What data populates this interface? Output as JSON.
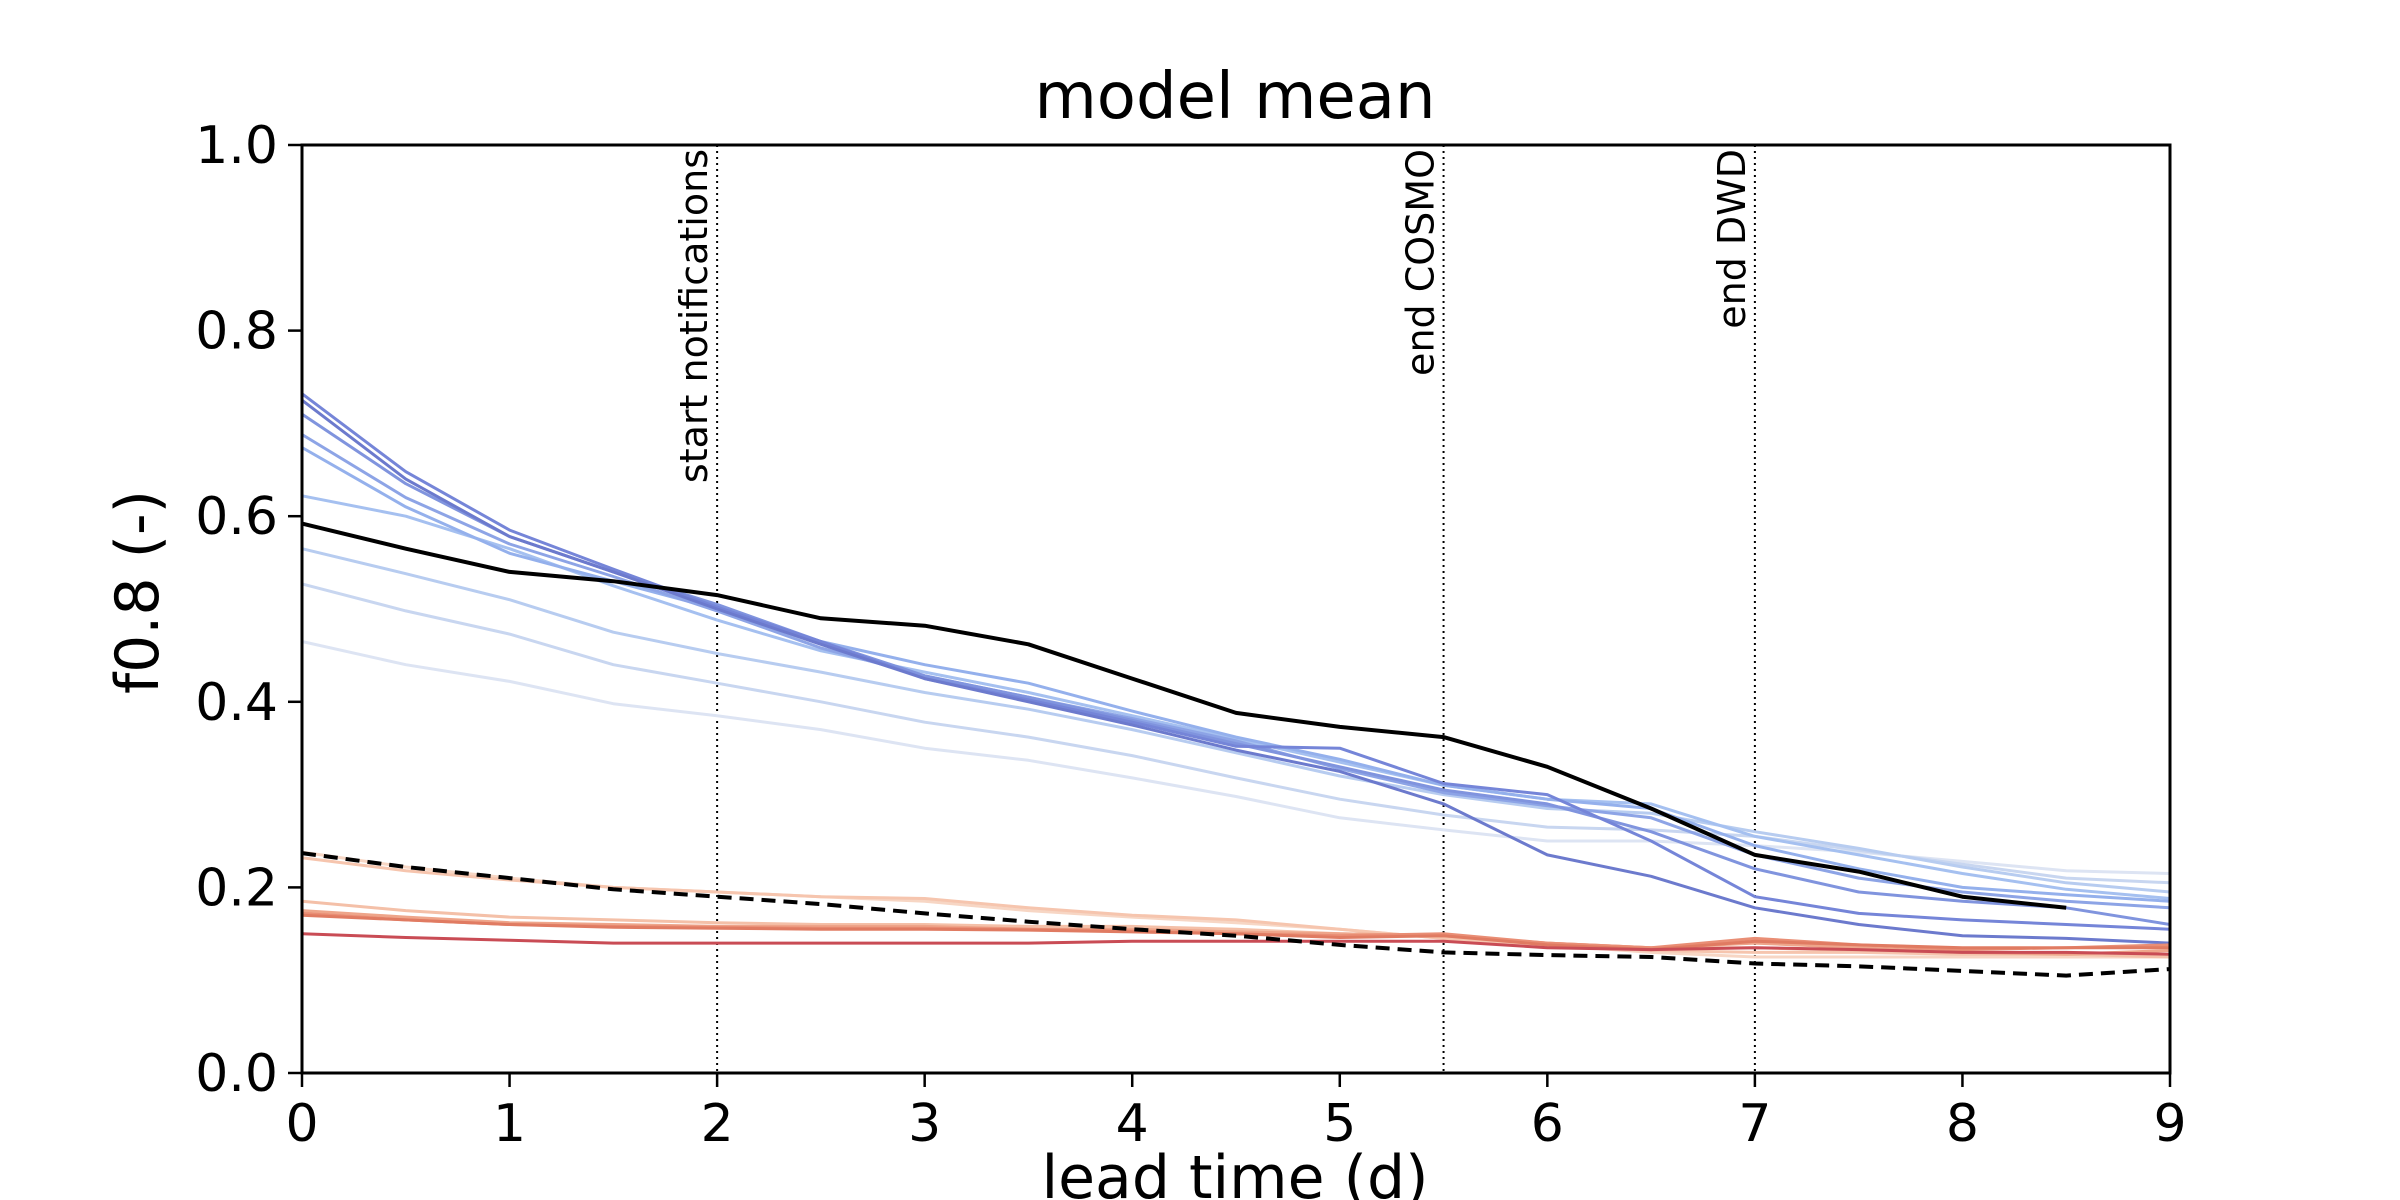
{
  "chart_data": {
    "type": "line",
    "title": "model mean",
    "xlabel": "lead time (d)",
    "ylabel": "f0.8 (-)",
    "xlim": [
      0,
      9
    ],
    "ylim": [
      0,
      1
    ],
    "xticks": [
      "0",
      "1",
      "2",
      "3",
      "4",
      "5",
      "6",
      "7",
      "8",
      "9"
    ],
    "yticks": [
      "0.0",
      "0.2",
      "0.4",
      "0.6",
      "0.8",
      "1.0"
    ],
    "grid": false,
    "x": [
      0,
      0.5,
      1,
      1.5,
      2,
      2.5,
      3,
      3.5,
      4,
      4.5,
      5,
      5.5,
      6,
      6.5,
      7,
      7.5,
      8,
      8.5,
      9
    ],
    "vlines": [
      {
        "x": 2,
        "label": "start notifications"
      },
      {
        "x": 5.5,
        "label": "end COSMO"
      },
      {
        "x": 7,
        "label": "end DWD"
      }
    ],
    "series": [
      {
        "color": "#dde4f3",
        "values": [
          0.465,
          0.44,
          0.422,
          0.398,
          0.385,
          0.37,
          0.35,
          0.337,
          0.318,
          0.298,
          0.275,
          0.262,
          0.25,
          0.25,
          0.245,
          0.238,
          0.228,
          0.218,
          0.215
        ]
      },
      {
        "color": "#c8d6f0",
        "values": [
          0.527,
          0.498,
          0.473,
          0.44,
          0.42,
          0.4,
          0.378,
          0.362,
          0.342,
          0.318,
          0.295,
          0.278,
          0.265,
          0.262,
          0.255,
          0.24,
          0.225,
          0.21,
          0.205
        ]
      },
      {
        "color": "#b7ccf0",
        "values": [
          0.565,
          0.538,
          0.51,
          0.475,
          0.452,
          0.432,
          0.41,
          0.392,
          0.37,
          0.345,
          0.32,
          0.3,
          0.285,
          0.28,
          0.26,
          0.242,
          0.222,
          0.205,
          0.195
        ]
      },
      {
        "color": "#a5c0f0",
        "values": [
          0.622,
          0.6,
          0.565,
          0.525,
          0.488,
          0.455,
          0.432,
          0.41,
          0.385,
          0.36,
          0.335,
          0.31,
          0.295,
          0.29,
          0.255,
          0.235,
          0.215,
          0.198,
          0.188
        ]
      },
      {
        "color": "#94b0ec",
        "values": [
          0.674,
          0.61,
          0.56,
          0.53,
          0.5,
          0.465,
          0.44,
          0.42,
          0.39,
          0.362,
          0.338,
          0.31,
          0.295,
          0.285,
          0.245,
          0.22,
          0.2,
          0.192,
          0.185
        ]
      },
      {
        "color": "#8da4e6",
        "values": [
          0.688,
          0.62,
          0.57,
          0.535,
          0.498,
          0.458,
          0.428,
          0.405,
          0.382,
          0.358,
          0.328,
          0.302,
          0.288,
          0.275,
          0.235,
          0.21,
          0.195,
          0.185,
          0.178
        ]
      },
      {
        "color": "#8094de",
        "values": [
          0.71,
          0.635,
          0.578,
          0.54,
          0.505,
          0.465,
          0.428,
          0.405,
          0.38,
          0.355,
          0.33,
          0.305,
          0.29,
          0.26,
          0.22,
          0.195,
          0.185,
          0.178,
          0.16
        ]
      },
      {
        "color": "#7585d8",
        "values": [
          0.732,
          0.648,
          0.585,
          0.543,
          0.502,
          0.465,
          0.425,
          0.402,
          0.378,
          0.352,
          0.35,
          0.312,
          0.3,
          0.25,
          0.19,
          0.172,
          0.165,
          0.16,
          0.155
        ]
      },
      {
        "color": "#6c7acd",
        "values": [
          0.725,
          0.64,
          0.578,
          0.54,
          0.5,
          0.462,
          0.425,
          0.4,
          0.375,
          0.348,
          0.325,
          0.29,
          0.235,
          0.212,
          0.178,
          0.16,
          0.148,
          0.145,
          0.14
        ]
      },
      {
        "color": "#f7d6c4",
        "values": [
          0.238,
          0.222,
          0.21,
          0.2,
          0.195,
          0.19,
          0.185,
          0.175,
          0.168,
          0.162,
          0.155,
          0.145,
          0.138,
          0.13,
          0.125,
          0.125,
          0.125,
          0.125,
          0.125
        ]
      },
      {
        "color": "#f6c5ae",
        "values": [
          0.232,
          0.218,
          0.208,
          0.2,
          0.195,
          0.19,
          0.188,
          0.178,
          0.17,
          0.165,
          0.155,
          0.145,
          0.138,
          0.132,
          0.13,
          0.13,
          0.128,
          0.128,
          0.128
        ]
      },
      {
        "color": "#f4c0a8",
        "values": [
          0.185,
          0.175,
          0.168,
          0.165,
          0.162,
          0.16,
          0.16,
          0.158,
          0.158,
          0.155,
          0.15,
          0.148,
          0.14,
          0.135,
          0.135,
          0.132,
          0.13,
          0.128,
          0.125
        ]
      },
      {
        "color": "#eea58a",
        "values": [
          0.175,
          0.168,
          0.162,
          0.16,
          0.158,
          0.158,
          0.158,
          0.155,
          0.155,
          0.152,
          0.15,
          0.148,
          0.14,
          0.135,
          0.14,
          0.135,
          0.13,
          0.128,
          0.132
        ]
      },
      {
        "color": "#e98e75",
        "values": [
          0.172,
          0.165,
          0.16,
          0.158,
          0.157,
          0.156,
          0.156,
          0.155,
          0.153,
          0.15,
          0.148,
          0.15,
          0.14,
          0.135,
          0.145,
          0.138,
          0.133,
          0.135,
          0.138
        ]
      },
      {
        "color": "#e07b62",
        "values": [
          0.17,
          0.165,
          0.16,
          0.157,
          0.156,
          0.155,
          0.155,
          0.154,
          0.152,
          0.15,
          0.146,
          0.148,
          0.138,
          0.133,
          0.142,
          0.138,
          0.135,
          0.135,
          0.135
        ]
      },
      {
        "color": "#c94c55",
        "values": [
          0.15,
          0.146,
          0.143,
          0.14,
          0.14,
          0.14,
          0.14,
          0.14,
          0.142,
          0.142,
          0.142,
          0.142,
          0.135,
          0.133,
          0.135,
          0.133,
          0.13,
          0.13,
          0.128
        ]
      },
      {
        "color": "#000000",
        "width": 4,
        "dash": false,
        "values": [
          0.592,
          0.565,
          0.54,
          0.53,
          0.515,
          0.49,
          0.482,
          0.462,
          0.425,
          0.388,
          0.373,
          0.362,
          0.33,
          0.285,
          0.235,
          0.217,
          0.19,
          0.178,
          null
        ]
      },
      {
        "color": "#000000",
        "width": 4,
        "dash": true,
        "values": [
          0.237,
          0.222,
          0.21,
          0.198,
          0.19,
          0.182,
          0.172,
          0.163,
          0.155,
          0.148,
          0.138,
          0.13,
          0.127,
          0.125,
          0.118,
          0.115,
          0.11,
          0.105,
          0.112
        ]
      }
    ]
  }
}
